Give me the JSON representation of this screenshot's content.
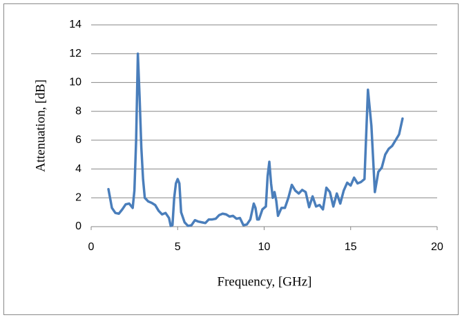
{
  "chart_data": {
    "type": "line",
    "xlabel": "Frequency, [GHz]",
    "ylabel": "Attenuation, [dB]",
    "color": "#4a7ebb",
    "x": [
      1.0,
      1.2,
      1.4,
      1.6,
      1.8,
      2.0,
      2.2,
      2.4,
      2.5,
      2.6,
      2.7,
      2.8,
      2.9,
      3.0,
      3.1,
      3.3,
      3.5,
      3.7,
      3.9,
      4.1,
      4.3,
      4.5,
      4.6,
      4.7,
      4.8,
      4.9,
      5.0,
      5.1,
      5.2,
      5.4,
      5.6,
      5.8,
      6.0,
      6.2,
      6.4,
      6.6,
      6.8,
      7.0,
      7.2,
      7.4,
      7.6,
      7.8,
      8.0,
      8.2,
      8.4,
      8.6,
      8.8,
      9.0,
      9.2,
      9.4,
      9.5,
      9.6,
      9.7,
      9.9,
      10.1,
      10.2,
      10.3,
      10.4,
      10.5,
      10.6,
      10.7,
      10.8,
      11.0,
      11.2,
      11.4,
      11.6,
      11.8,
      12.0,
      12.2,
      12.4,
      12.6,
      12.8,
      13.0,
      13.2,
      13.4,
      13.6,
      13.8,
      14.0,
      14.2,
      14.4,
      14.6,
      14.8,
      15.0,
      15.2,
      15.4,
      15.6,
      15.8,
      16.0,
      16.2,
      16.4,
      16.6,
      16.8,
      17.0,
      17.2,
      17.4,
      17.6,
      17.8,
      18.0
    ],
    "values": [
      2.6,
      1.3,
      0.95,
      0.9,
      1.2,
      1.55,
      1.6,
      1.3,
      2.5,
      6,
      12.0,
      9,
      5.5,
      3.3,
      2.0,
      1.75,
      1.65,
      1.5,
      1.1,
      0.85,
      0.95,
      0.6,
      0.05,
      0.1,
      2.0,
      3.0,
      3.3,
      3.0,
      1.0,
      0.3,
      0.05,
      0.1,
      0.45,
      0.35,
      0.3,
      0.25,
      0.5,
      0.5,
      0.55,
      0.8,
      0.9,
      0.85,
      0.7,
      0.75,
      0.55,
      0.6,
      0.1,
      0.15,
      0.5,
      1.6,
      1.3,
      0.5,
      0.5,
      1.2,
      1.4,
      3.5,
      4.5,
      3.0,
      2.0,
      2.4,
      1.8,
      0.75,
      1.3,
      1.3,
      2.0,
      2.9,
      2.5,
      2.3,
      2.55,
      2.4,
      1.35,
      2.1,
      1.4,
      1.5,
      1.2,
      2.7,
      2.4,
      1.4,
      2.3,
      1.6,
      2.5,
      3.05,
      2.85,
      3.4,
      3.0,
      3.1,
      3.3,
      9.5,
      7,
      2.4,
      3.8,
      4.1,
      5.0,
      5.4,
      5.6,
      6.0,
      6.4,
      7.5
    ],
    "xlim": [
      0,
      20
    ],
    "xticks": [
      0,
      5,
      10,
      15,
      20
    ],
    "ylim": [
      0,
      14
    ],
    "yticks": [
      0,
      2,
      4,
      6,
      8,
      10,
      12,
      14
    ],
    "grid": true
  }
}
